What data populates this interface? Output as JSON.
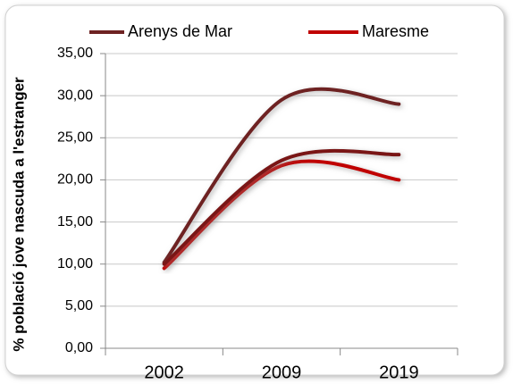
{
  "chart_data": {
    "type": "line",
    "y_label": "% població jove nascuda a l'estranger",
    "categories": [
      "2002",
      "2009",
      "2019"
    ],
    "series": [
      {
        "name": "Arenys de Mar",
        "color": "#6e2222",
        "values": [
          10.2,
          29.5,
          29.0
        ]
      },
      {
        "name": "Maresme",
        "color": "#c00000",
        "values": [
          9.5,
          21.7,
          20.0
        ]
      },
      {
        "color": "#7a1515",
        "values": [
          10.0,
          22.3,
          23.0
        ]
      }
    ],
    "ylim": [
      0,
      35
    ],
    "yticks": [
      {
        "value": 0,
        "label": "0,00"
      },
      {
        "value": 5,
        "label": "5,00"
      },
      {
        "value": 10,
        "label": "10,00"
      },
      {
        "value": 15,
        "label": "15,00"
      },
      {
        "value": 20,
        "label": "20,00"
      },
      {
        "value": 25,
        "label": "25,00"
      },
      {
        "value": 30,
        "label": "30,00"
      },
      {
        "value": 35,
        "label": "35,00"
      }
    ],
    "grid": true
  }
}
